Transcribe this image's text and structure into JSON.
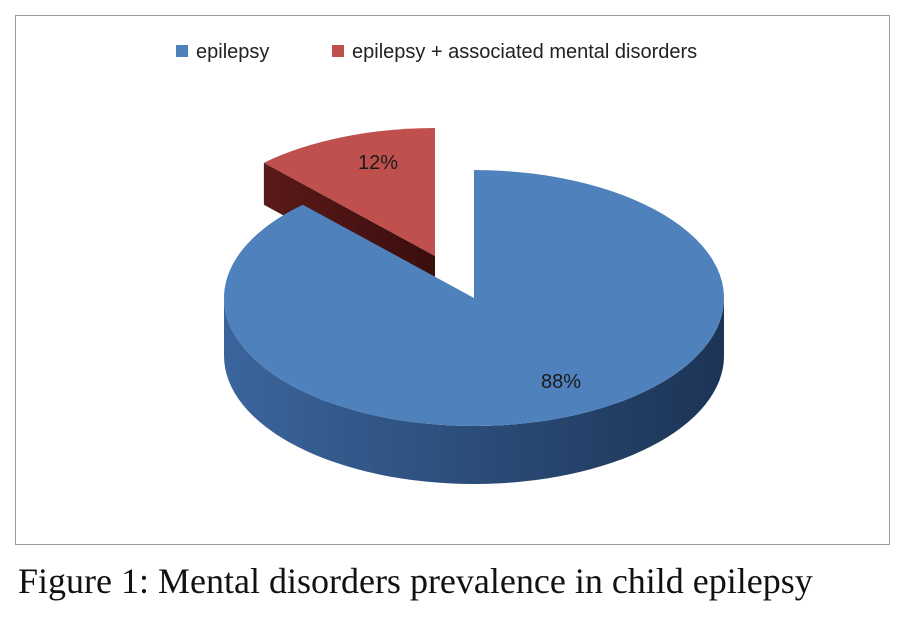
{
  "caption": "Figure 1: Mental disorders prevalence in child epilepsy",
  "chart_data": {
    "type": "pie",
    "style": "3d-exploded",
    "categories": [
      "epilepsy",
      "epilepsy + associated mental disorders"
    ],
    "values": [
      88,
      12
    ],
    "data_labels": [
      "88%",
      "12%"
    ],
    "colors": [
      "#4F81BD",
      "#C0504D"
    ],
    "legend_position": "top",
    "title": ""
  }
}
